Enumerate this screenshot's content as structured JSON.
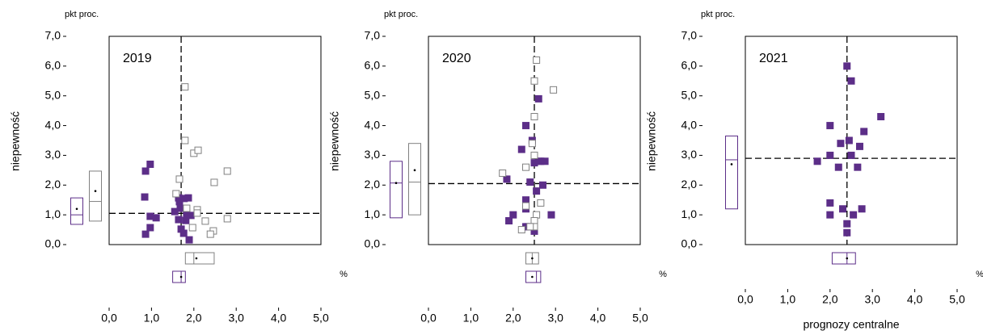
{
  "chart_data": [
    {
      "type": "scatter",
      "panel_label": "2019",
      "y_unit": "pkt proc.",
      "ylabel": "niepewność",
      "xlabel": "prognozy  centralne",
      "x_unit": "%",
      "xlim": [
        0,
        5
      ],
      "ylim": [
        0,
        7
      ],
      "xticks": [
        {
          "value": 0,
          "label": "0,0"
        },
        {
          "value": 1,
          "label": "1,0"
        },
        {
          "value": 2,
          "label": "2,0"
        },
        {
          "value": 3,
          "label": "3,0"
        },
        {
          "value": 4,
          "label": "4,0"
        },
        {
          "value": 5,
          "label": "5,0"
        }
      ],
      "yticks": [
        {
          "value": 0,
          "label": "0,0"
        },
        {
          "value": 1,
          "label": "1,0"
        },
        {
          "value": 2,
          "label": "2,0"
        },
        {
          "value": 3,
          "label": "3,0"
        },
        {
          "value": 4,
          "label": "4,0"
        },
        {
          "value": 5,
          "label": "5,0"
        },
        {
          "value": 6,
          "label": "6,0"
        },
        {
          "value": 7,
          "label": "7,0"
        }
      ],
      "vline": 1.7,
      "hline": 1.05,
      "series": [
        {
          "color": "#5c2e88",
          "filled": true,
          "x": [
            0.86,
            0.97,
            0.84,
            0.97,
            0.86,
            0.97,
            1.11,
            1.55,
            1.64,
            1.66,
            1.68,
            1.77,
            1.87,
            1.7,
            1.83,
            1.81,
            1.93,
            1.76,
            1.89,
            1.64
          ],
          "values": [
            2.47,
            2.7,
            1.6,
            0.95,
            0.35,
            0.57,
            0.9,
            1.11,
            1.57,
            1.44,
            1.22,
            1.55,
            1.57,
            0.52,
            1.03,
            0.81,
            0.98,
            0.38,
            0.16,
            0.84
          ]
        },
        {
          "color": "#808080",
          "filled": false,
          "x": [
            1.79,
            1.79,
            2.0,
            2.1,
            2.79,
            2.48,
            1.66,
            1.58,
            2.08,
            2.08,
            2.27,
            1.97,
            2.46,
            2.39,
            2.79,
            1.83
          ],
          "values": [
            5.3,
            3.5,
            3.07,
            3.17,
            2.47,
            2.09,
            2.2,
            1.71,
            1.17,
            1.06,
            0.79,
            0.57,
            0.46,
            0.35,
            0.87,
            1.22
          ]
        }
      ],
      "y_boxes": [
        {
          "color": "#5c2e88",
          "low": 0.68,
          "median": 1.0,
          "high": 1.57,
          "mean": 1.2
        },
        {
          "color": "#808080",
          "low": 0.79,
          "median": 1.45,
          "high": 2.47,
          "mean": 1.8
        }
      ],
      "x_boxes": [
        {
          "color": "#808080",
          "low": 1.8,
          "median": 2.0,
          "high": 2.48,
          "mean": 2.06
        },
        {
          "color": "#5c2e88",
          "low": 1.5,
          "median": 1.7,
          "high": 1.8,
          "mean": 1.7
        }
      ]
    },
    {
      "type": "scatter",
      "panel_label": "2020",
      "y_unit": "pkt proc.",
      "ylabel": "niepewność",
      "xlabel": "prognozy  centralne",
      "x_unit": "%",
      "xlim": [
        0,
        5
      ],
      "ylim": [
        0,
        7
      ],
      "xticks": [
        {
          "value": 0,
          "label": "0,0"
        },
        {
          "value": 1,
          "label": "1,0"
        },
        {
          "value": 2,
          "label": "2,0"
        },
        {
          "value": 3,
          "label": "3,0"
        },
        {
          "value": 4,
          "label": "4,0"
        },
        {
          "value": 5,
          "label": "5,0"
        }
      ],
      "yticks": [
        {
          "value": 0,
          "label": "0,0"
        },
        {
          "value": 1,
          "label": "1,0"
        },
        {
          "value": 2,
          "label": "2,0"
        },
        {
          "value": 3,
          "label": "3,0"
        },
        {
          "value": 4,
          "label": "4,0"
        },
        {
          "value": 5,
          "label": "5,0"
        },
        {
          "value": 6,
          "label": "6,0"
        },
        {
          "value": 7,
          "label": "7,0"
        }
      ],
      "vline": 2.5,
      "hline": 2.05,
      "series": [
        {
          "color": "#5c2e88",
          "filled": true,
          "x": [
            2.3,
            2.2,
            2.45,
            2.6,
            1.85,
            2.5,
            2.65,
            2.75,
            2.7,
            2.4,
            2.3,
            2.3,
            2.0,
            1.9,
            2.55,
            2.9,
            2.5,
            2.35,
            2.3,
            2.5,
            2.6
          ],
          "values": [
            4.0,
            3.2,
            3.5,
            4.9,
            2.2,
            2.75,
            2.8,
            2.8,
            2.0,
            2.1,
            1.5,
            1.2,
            1.0,
            0.8,
            1.8,
            1.0,
            0.6,
            0.6,
            0.6,
            0.45,
            2.8
          ]
        },
        {
          "color": "#808080",
          "filled": false,
          "x": [
            2.55,
            2.5,
            2.95,
            2.5,
            2.45,
            2.5,
            1.75,
            2.3,
            2.65,
            2.55,
            2.5,
            2.5,
            2.2,
            2.4,
            2.3
          ],
          "values": [
            6.2,
            5.5,
            5.2,
            4.3,
            3.4,
            3.0,
            2.4,
            2.6,
            1.4,
            1.0,
            0.8,
            0.6,
            0.5,
            0.6,
            1.3
          ]
        }
      ],
      "y_boxes": [
        {
          "color": "#5c2e88",
          "low": 0.9,
          "median": 2.07,
          "high": 2.8,
          "mean": 2.07
        },
        {
          "color": "#808080",
          "low": 1.0,
          "median": 2.1,
          "high": 3.4,
          "mean": 2.5
        }
      ],
      "x_boxes": [
        {
          "color": "#808080",
          "low": 2.3,
          "median": 2.45,
          "high": 2.6,
          "mean": 2.45
        },
        {
          "color": "#5c2e88",
          "low": 2.3,
          "median": 2.55,
          "high": 2.65,
          "mean": 2.45
        }
      ]
    },
    {
      "type": "scatter",
      "panel_label": "2021",
      "y_unit": "pkt proc.",
      "ylabel": "niepewność",
      "xlabel": "prognozy  centralne",
      "x_unit": "%",
      "xlim": [
        0,
        5
      ],
      "ylim": [
        0,
        7
      ],
      "xticks": [
        {
          "value": 0,
          "label": "0,0"
        },
        {
          "value": 1,
          "label": "1,0"
        },
        {
          "value": 2,
          "label": "2,0"
        },
        {
          "value": 3,
          "label": "3,0"
        },
        {
          "value": 4,
          "label": "4,0"
        },
        {
          "value": 5,
          "label": "5,0"
        }
      ],
      "yticks": [
        {
          "value": 0,
          "label": "0,0"
        },
        {
          "value": 1,
          "label": "1,0"
        },
        {
          "value": 2,
          "label": "2,0"
        },
        {
          "value": 3,
          "label": "3,0"
        },
        {
          "value": 4,
          "label": "4,0"
        },
        {
          "value": 5,
          "label": "5,0"
        },
        {
          "value": 6,
          "label": "6,0"
        },
        {
          "value": 7,
          "label": "7,0"
        }
      ],
      "vline": 2.4,
      "hline": 2.9,
      "series": [
        {
          "color": "#5c2e88",
          "filled": true,
          "x": [
            2.4,
            2.5,
            3.2,
            2.0,
            2.8,
            2.25,
            2.45,
            2.7,
            2.0,
            2.5,
            1.7,
            2.2,
            2.65,
            2.0,
            2.0,
            2.3,
            2.55,
            2.75,
            2.4,
            2.4
          ],
          "values": [
            6.0,
            5.5,
            4.3,
            4.0,
            3.8,
            3.4,
            3.5,
            3.3,
            3.0,
            3.0,
            2.8,
            2.6,
            2.6,
            1.4,
            1.0,
            1.2,
            1.0,
            1.2,
            0.7,
            0.4
          ]
        }
      ],
      "y_boxes": [
        {
          "color": "#5c2e88",
          "low": 1.2,
          "median": 2.85,
          "high": 3.65,
          "mean": 2.7
        }
      ],
      "x_boxes": [
        {
          "color": "#5c2e88",
          "low": 2.05,
          "median": 2.4,
          "high": 2.6,
          "mean": 2.4
        }
      ]
    }
  ]
}
